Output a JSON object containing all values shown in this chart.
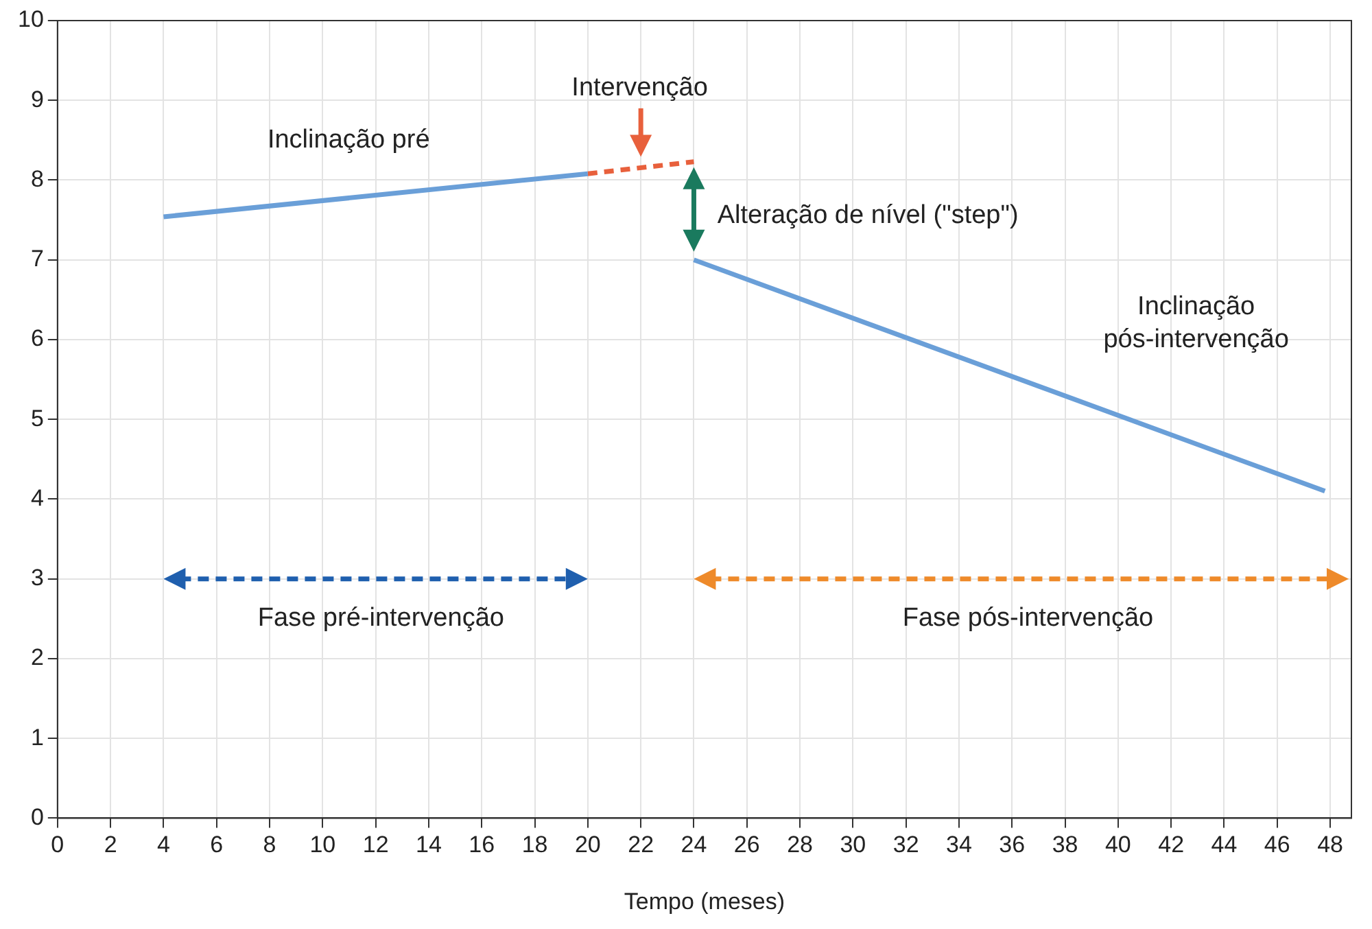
{
  "chart_data": {
    "type": "line",
    "xlabel": "Tempo (meses)",
    "xlim": [
      0,
      48.8
    ],
    "xticks": [
      0,
      2,
      4,
      6,
      8,
      10,
      12,
      14,
      16,
      18,
      20,
      22,
      24,
      26,
      28,
      30,
      32,
      34,
      36,
      38,
      40,
      42,
      44,
      46,
      48
    ],
    "ylim": [
      0,
      10
    ],
    "yticks": [
      0,
      1,
      2,
      3,
      4,
      5,
      6,
      7,
      8,
      9,
      10
    ],
    "grid": true,
    "legend": false,
    "marker": "none",
    "series": [
      {
        "color": "#6a9fd8",
        "line_style": "solid",
        "x": [
          4,
          20
        ],
        "values": [
          7.54,
          8.08
        ]
      },
      {
        "color": "#e8603c",
        "line_style": "dashed",
        "x": [
          20,
          24
        ],
        "values": [
          8.08,
          8.23
        ]
      },
      {
        "color": "#6a9fd8",
        "line_style": "solid",
        "x": [
          24,
          47.8
        ],
        "values": [
          7,
          4.1
        ]
      }
    ],
    "annotations": [
      "Inclinação pré",
      "Intervenção",
      "Alteração de nível (\"step\")",
      "Inclinação\npós-intervenção",
      "Fase pré-intervenção",
      "Fase pós-intervenção"
    ]
  }
}
